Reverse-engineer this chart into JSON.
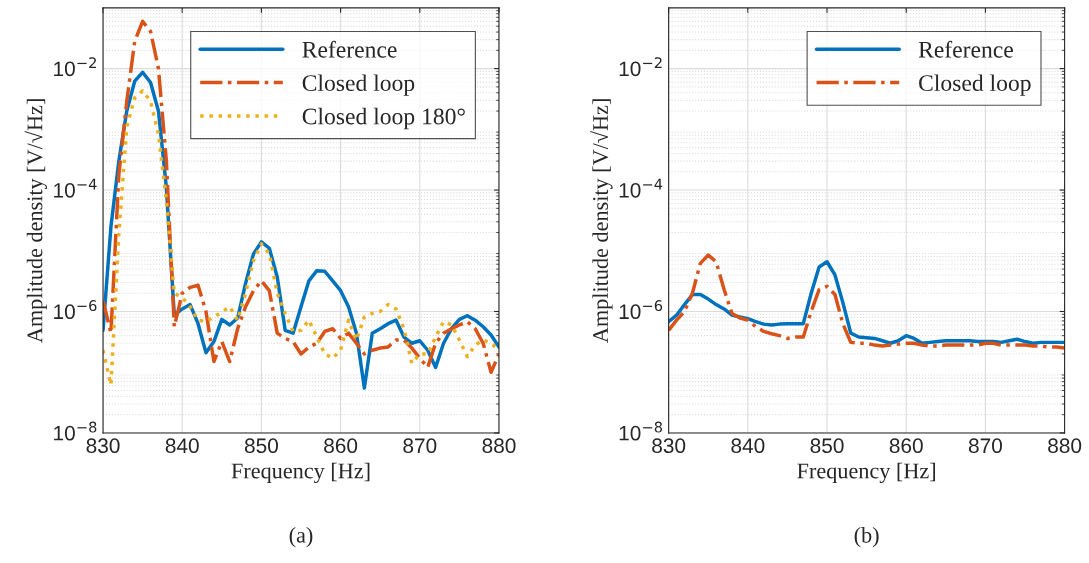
{
  "chart_data": [
    {
      "type": "line",
      "xlabel": "Frequency [Hz]",
      "ylabel": "Amplitude density [V/√Hz]",
      "annotations": [
        "(a)"
      ],
      "x": [
        830,
        831,
        832,
        833,
        834,
        835,
        836,
        837,
        838,
        839,
        840,
        841,
        842,
        843,
        844,
        845,
        846,
        847,
        848,
        849,
        850,
        851,
        852,
        853,
        854,
        855,
        856,
        857,
        858,
        859,
        860,
        861,
        862,
        863,
        864,
        865,
        866,
        867,
        868,
        869,
        870,
        871,
        872,
        873,
        874,
        875,
        876,
        877,
        878,
        879,
        880
      ],
      "series": [
        {
          "name": "Reference",
          "color": "#0072bd",
          "line_style": "solid",
          "values": [
            4.9e-07,
            2.5e-05,
            0.0003,
            0.002,
            0.0062,
            0.0087,
            0.0059,
            0.002,
            0.00011,
            8.7e-07,
            1.1e-06,
            1.3e-06,
            6.3e-07,
            2.1e-07,
            3.2e-07,
            7.4e-07,
            6e-07,
            7.8e-07,
            2.9e-06,
            8.9e-06,
            1.4e-05,
            1.1e-05,
            3.7e-06,
            4.9e-07,
            4.4e-07,
            1.2e-06,
            3.2e-06,
            4.7e-06,
            4.6e-06,
            3.2e-06,
            2.2e-06,
            1.2e-06,
            4.4e-07,
            5.5e-08,
            4.4e-07,
            5.2e-07,
            6.3e-07,
            7.2e-07,
            3.8e-07,
            3e-07,
            3.3e-07,
            2.3e-07,
            1.2e-07,
            3e-07,
            5.2e-07,
            7.4e-07,
            8.5e-07,
            7.2e-07,
            5.6e-07,
            4.1e-07,
            2.6e-07
          ]
        },
        {
          "name": "Closed loop",
          "color": "#d95319",
          "line_style": "dashdot",
          "values": [
            1.5e-06,
            4.4e-07,
            0.00018,
            0.0029,
            0.028,
            0.06,
            0.041,
            0.01,
            0.0003,
            5.6e-07,
            2e-06,
            2.5e-06,
            2.7e-06,
            1e-06,
            1.5e-07,
            3.2e-07,
            1.5e-07,
            5.2e-07,
            1.2e-06,
            2.2e-06,
            3.2e-06,
            2.2e-06,
            4.4e-07,
            3.6e-07,
            3.2e-07,
            2e-07,
            2.6e-07,
            3e-07,
            4.7e-07,
            5.2e-07,
            3.6e-07,
            4.4e-07,
            3e-07,
            2e-07,
            2.3e-07,
            2.5e-07,
            2.6e-07,
            3.4e-07,
            3.4e-07,
            2.5e-07,
            1.7e-07,
            1.2e-07,
            3e-07,
            4.4e-07,
            5.2e-07,
            6e-07,
            6.8e-07,
            5.2e-07,
            3e-07,
            1e-07,
            2e-07
          ]
        },
        {
          "name": "Closed loop 180°",
          "color": "#edb120",
          "line_style": "dotted",
          "values": [
            2.3e-07,
            6.2e-08,
            1.9e-05,
            0.0011,
            0.0033,
            0.0043,
            0.0029,
            0.00083,
            6.8e-05,
            2e-06,
            1.7e-06,
            1.2e-06,
            7.2e-07,
            6.8e-07,
            8.1e-07,
            9.8e-07,
            1.2e-06,
            7.2e-07,
            2e-06,
            6.9e-06,
            1.3e-05,
            8.9e-06,
            2e-06,
            9.3e-07,
            4.7e-07,
            4.9e-07,
            7.2e-07,
            3.8e-07,
            2e-07,
            1.7e-07,
            2.3e-07,
            7.2e-07,
            3.4e-07,
            8.1e-07,
            9.3e-07,
            1e-06,
            1.3e-06,
            1.1e-06,
            5.2e-07,
            1.4e-07,
            2e-07,
            2e-07,
            3.8e-07,
            6.8e-07,
            6e-07,
            3.4e-07,
            1.8e-07,
            2.8e-07,
            3.4e-07,
            3e-07,
            2.3e-07
          ]
        }
      ],
      "xlim": [
        830,
        880
      ],
      "xticks": [
        830,
        840,
        850,
        860,
        870,
        880
      ],
      "log": "y",
      "ylim": [
        1e-08,
        0.1
      ],
      "yticks": [
        {
          "value": 1e-08,
          "label": "10$^{−8}$"
        },
        {
          "value": 1e-06,
          "label": "10$^{−6}$"
        },
        {
          "value": 0.0001,
          "label": "10$^{−4}$"
        },
        {
          "value": 0.01,
          "label": "10$^{−2}$"
        }
      ],
      "grid": true,
      "legend": "top right"
    },
    {
      "type": "line",
      "xlabel": "Frequency [Hz]",
      "ylabel": "Amplitude density [V/√Hz]",
      "annotations": [
        "(b)"
      ],
      "x": [
        830,
        831,
        832,
        833,
        834,
        835,
        836,
        837,
        838,
        839,
        840,
        841,
        842,
        843,
        844,
        845,
        846,
        847,
        848,
        849,
        850,
        851,
        852,
        853,
        854,
        855,
        856,
        857,
        858,
        859,
        860,
        861,
        862,
        863,
        864,
        865,
        866,
        867,
        868,
        869,
        870,
        871,
        872,
        873,
        874,
        875,
        876,
        877,
        878,
        879,
        880
      ],
      "series": [
        {
          "name": "Reference",
          "color": "#0072bd",
          "line_style": "solid",
          "values": [
            6.8e-07,
            8.7e-07,
            1.3e-06,
            1.9e-06,
            1.9e-06,
            1.6e-06,
            1.3e-06,
            1.1e-06,
            8.7e-07,
            8.1e-07,
            7.6e-07,
            6.8e-07,
            6.2e-07,
            6e-07,
            6.2e-07,
            6.3e-07,
            6.3e-07,
            6.3e-07,
            2e-06,
            5.4e-06,
            6.6e-06,
            4e-06,
            1.4e-06,
            4.4e-07,
            3.8e-07,
            3.7e-07,
            3.6e-07,
            3.3e-07,
            3e-07,
            3.3e-07,
            4e-07,
            3.6e-07,
            3e-07,
            3.1e-07,
            3.2e-07,
            3.3e-07,
            3.3e-07,
            3.3e-07,
            3.3e-07,
            3.2e-07,
            3.2e-07,
            3.2e-07,
            3.1e-07,
            3.3e-07,
            3.5e-07,
            3.2e-07,
            3e-07,
            3.1e-07,
            3.1e-07,
            3.1e-07,
            3.1e-07
          ]
        },
        {
          "name": "Closed loop",
          "color": "#d95319",
          "line_style": "dashdot",
          "values": [
            4.9e-07,
            7.2e-07,
            1e-06,
            2e-06,
            6.2e-06,
            8.5e-06,
            6.6e-06,
            2.3e-06,
            9.3e-07,
            7.8e-07,
            7.2e-07,
            5.6e-07,
            4.7e-07,
            4.3e-07,
            4e-07,
            3.6e-07,
            3.8e-07,
            3.8e-07,
            1e-06,
            2.3e-06,
            2.6e-06,
            1.9e-06,
            6.3e-07,
            3.1e-07,
            3e-07,
            3e-07,
            2.8e-07,
            2.7e-07,
            2.8e-07,
            2.9e-07,
            3e-07,
            3e-07,
            2.8e-07,
            2.7e-07,
            2.7e-07,
            2.8e-07,
            2.8e-07,
            2.8e-07,
            2.8e-07,
            2.8e-07,
            3e-07,
            3e-07,
            2.8e-07,
            2.8e-07,
            2.8e-07,
            2.8e-07,
            2.7e-07,
            2.7e-07,
            2.6e-07,
            2.6e-07,
            2.5e-07
          ]
        }
      ],
      "xlim": [
        830,
        880
      ],
      "xticks": [
        830,
        840,
        850,
        860,
        870,
        880
      ],
      "log": "y",
      "ylim": [
        1e-08,
        0.1
      ],
      "yticks": [
        {
          "value": 1e-08,
          "label": "10$^{−8}$"
        },
        {
          "value": 1e-06,
          "label": "10$^{−6}$"
        },
        {
          "value": 0.0001,
          "label": "10$^{−4}$"
        },
        {
          "value": 0.01,
          "label": "10$^{−2}$"
        }
      ],
      "grid": true,
      "legend": "top right"
    }
  ]
}
